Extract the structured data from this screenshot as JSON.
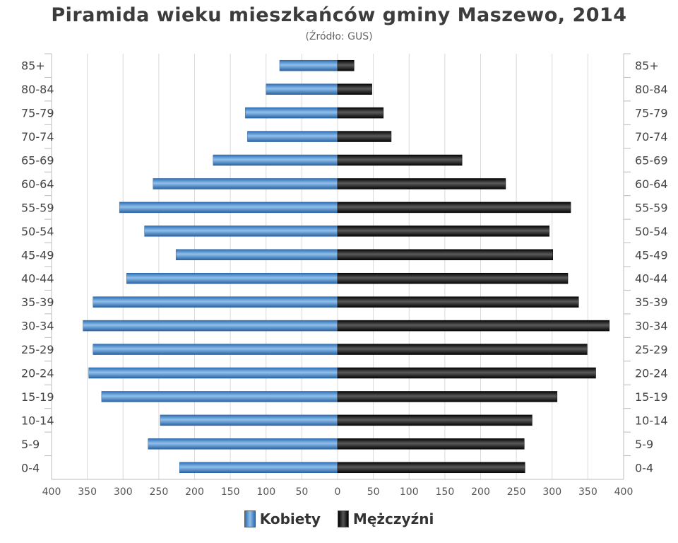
{
  "colors": {
    "women": "#3d7cc4",
    "men": "#141414",
    "grid": "#d9d9d9",
    "axis": "#bcbcbc"
  },
  "chart_data": {
    "type": "bar",
    "orientation": "horizontal-population-pyramid",
    "title": "Piramida wieku mieszkańców gminy Maszewo, 2014",
    "subtitle": "(Źródło: GUS)",
    "categories": [
      "0-4",
      "5-9",
      "10-14",
      "15-19",
      "20-24",
      "25-29",
      "30-34",
      "35-39",
      "40-44",
      "45-49",
      "50-54",
      "55-59",
      "60-64",
      "65-69",
      "70-74",
      "75-79",
      "80-84",
      "85+"
    ],
    "series": [
      {
        "name": "Kobiety",
        "values": [
          221,
          265,
          248,
          330,
          348,
          342,
          356,
          342,
          295,
          226,
          270,
          305,
          258,
          174,
          126,
          129,
          100,
          81
        ]
      },
      {
        "name": "Mężczyźni",
        "values": [
          262,
          261,
          272,
          307,
          361,
          349,
          380,
          337,
          322,
          301,
          296,
          326,
          235,
          174,
          75,
          64,
          48,
          23
        ]
      }
    ],
    "x_tick_labels": [
      "400",
      "350",
      "300",
      "250",
      "200",
      "150",
      "100",
      "50",
      "0",
      "50",
      "100",
      "150",
      "200",
      "250",
      "300",
      "350",
      "400"
    ],
    "xlim": [
      -400,
      400
    ],
    "grid": true,
    "legend_position": "bottom-center"
  }
}
